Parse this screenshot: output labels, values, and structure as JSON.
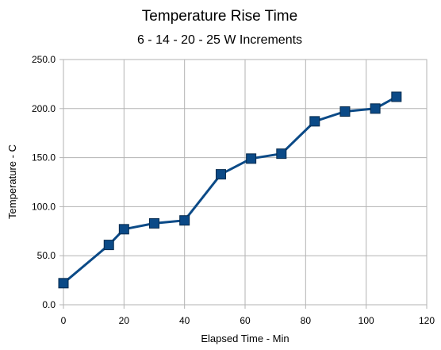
{
  "chart_data": {
    "type": "line",
    "title": "Temperature Rise Time",
    "subtitle": "6 - 14 - 20 - 25 W Increments",
    "xlabel": "Elapsed Time - Min",
    "ylabel": "Temperature - C",
    "xlim": [
      0,
      120
    ],
    "ylim": [
      0,
      250
    ],
    "x_ticks": [
      0,
      20,
      40,
      60,
      80,
      100,
      120
    ],
    "y_ticks": [
      0,
      50,
      100,
      150,
      200,
      250
    ],
    "x_tick_labels": [
      "0",
      "20",
      "40",
      "60",
      "80",
      "100",
      "120"
    ],
    "y_tick_labels": [
      "0.0",
      "50.0",
      "100.0",
      "150.0",
      "200.0",
      "250.0"
    ],
    "grid": true,
    "legend": "none",
    "series": [
      {
        "color": "#0b4a87",
        "marker": "square",
        "x": [
          0,
          15,
          20,
          30,
          40,
          52,
          62,
          72,
          83,
          93,
          103,
          110
        ],
        "y": [
          22,
          61,
          77,
          83,
          86,
          133,
          149,
          154,
          187,
          197,
          200,
          212
        ]
      }
    ]
  }
}
